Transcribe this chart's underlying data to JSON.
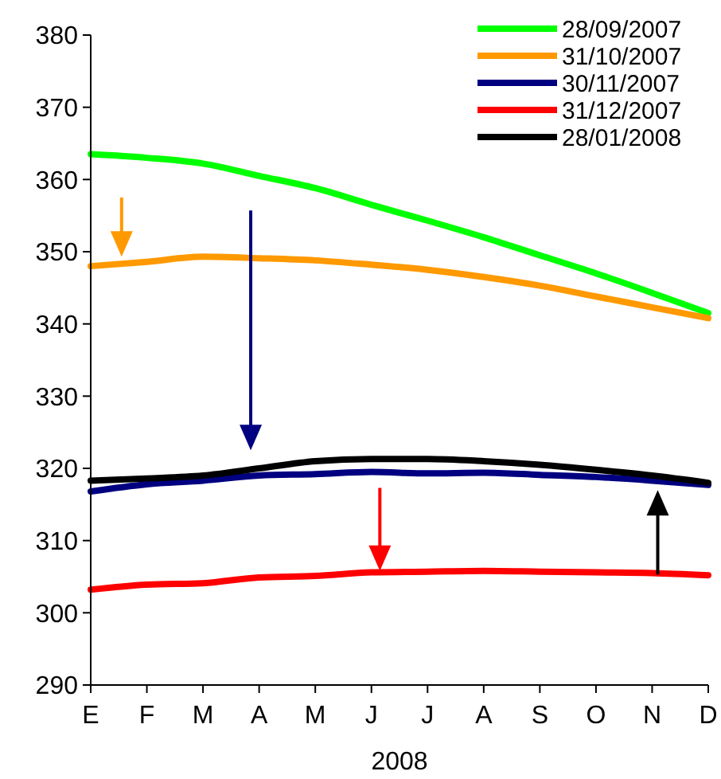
{
  "chart_data": {
    "type": "line",
    "xlabel": "2008",
    "categories": [
      "E",
      "F",
      "M",
      "A",
      "M",
      "J",
      "J",
      "A",
      "S",
      "O",
      "N",
      "D"
    ],
    "ylim": [
      290,
      380
    ],
    "yticks": [
      290,
      300,
      310,
      320,
      330,
      340,
      350,
      360,
      370,
      380
    ],
    "grid": false,
    "legend": "top right",
    "marker": "none",
    "line_style": "solid",
    "series": [
      {
        "name": "28/09/2007",
        "color": "#00ff00",
        "values": [
          363.5,
          363,
          362.2,
          360.5,
          358.8,
          356.5,
          354.3,
          352,
          349.5,
          347,
          344.3,
          341.5
        ]
      },
      {
        "name": "31/10/2007",
        "color": "#ff9900",
        "values": [
          348,
          348.6,
          349.3,
          349.1,
          348.8,
          348.2,
          347.5,
          346.5,
          345.3,
          343.8,
          342.3,
          340.8
        ]
      },
      {
        "name": "30/11/2007",
        "color": "#000080",
        "values": [
          316.8,
          317.8,
          318.3,
          319,
          319.2,
          319.5,
          319.3,
          319.4,
          319.1,
          318.8,
          318.3,
          317.7
        ]
      },
      {
        "name": "31/12/2007",
        "color": "#ff0000",
        "values": [
          303.2,
          303.9,
          304.1,
          304.9,
          305.1,
          305.6,
          305.7,
          305.8,
          305.7,
          305.6,
          305.5,
          305.2
        ]
      },
      {
        "name": "28/01/2008",
        "color": "#000000",
        "values": [
          318.3,
          318.6,
          319,
          320,
          321,
          321.3,
          321.3,
          321,
          320.5,
          319.8,
          319,
          318
        ]
      }
    ]
  }
}
